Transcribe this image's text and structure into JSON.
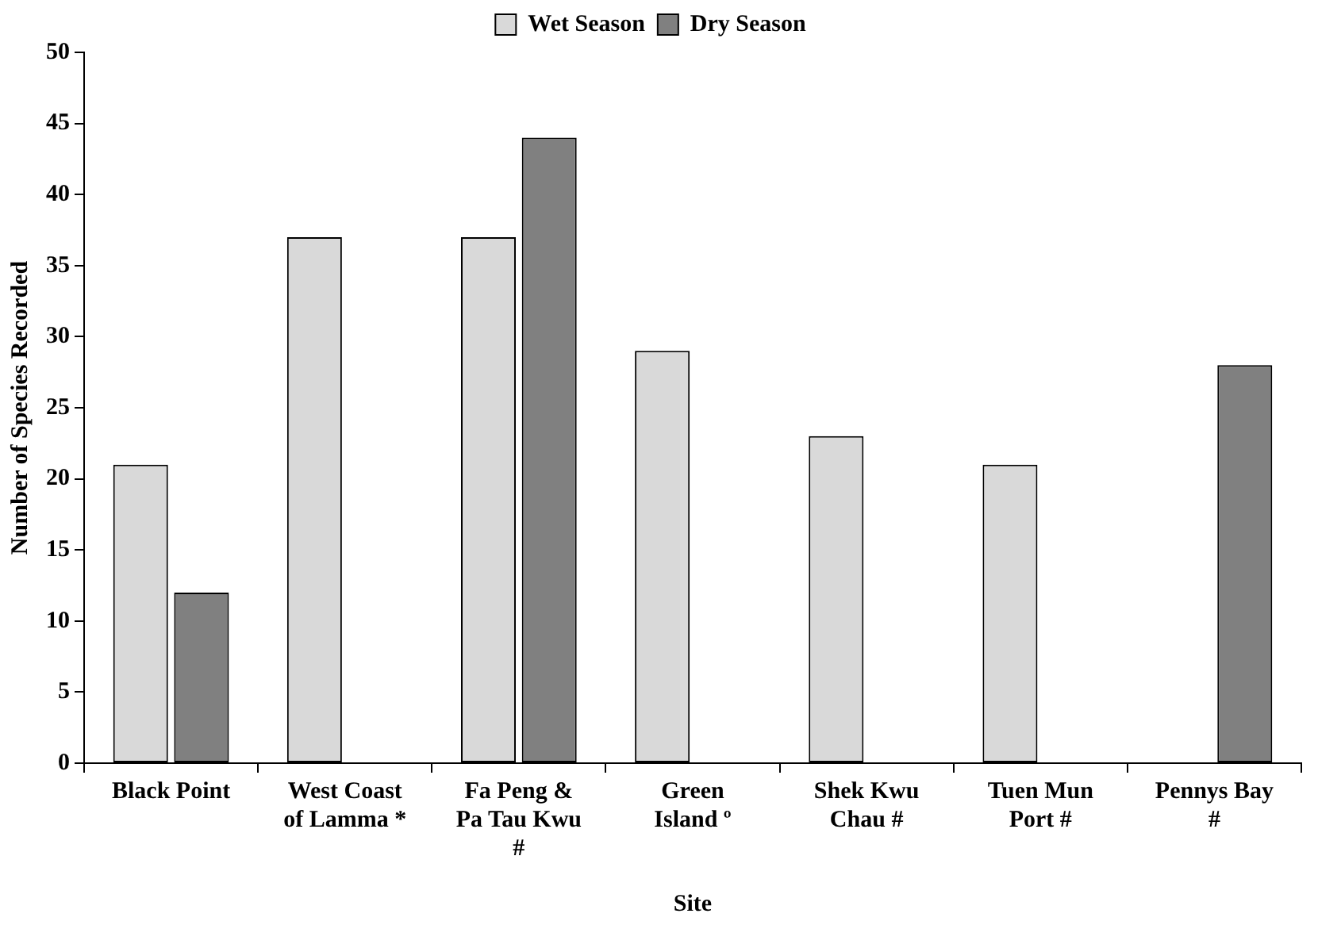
{
  "chart_data": {
    "type": "bar",
    "xlabel": "Site",
    "ylabel": "Number of Species Recorded",
    "categories": [
      "Black Point",
      "West Coast of Lamma *",
      "Fa Peng & Pa Tau Kwu #",
      "Green Island º",
      "Shek Kwu Chau #",
      "Tuen Mun Port #",
      "Pennys Bay #"
    ],
    "series": [
      {
        "name": "Wet Season",
        "color": "#d9d9d9",
        "values": [
          21,
          37,
          37,
          29,
          23,
          21,
          null
        ]
      },
      {
        "name": "Dry Season",
        "color": "#808080",
        "values": [
          12,
          null,
          44,
          null,
          null,
          null,
          28
        ]
      }
    ],
    "ylim": [
      0,
      50
    ],
    "yticks": [
      0,
      5,
      10,
      15,
      20,
      25,
      30,
      35,
      40,
      45,
      50
    ],
    "grid": false,
    "legend": "top"
  }
}
